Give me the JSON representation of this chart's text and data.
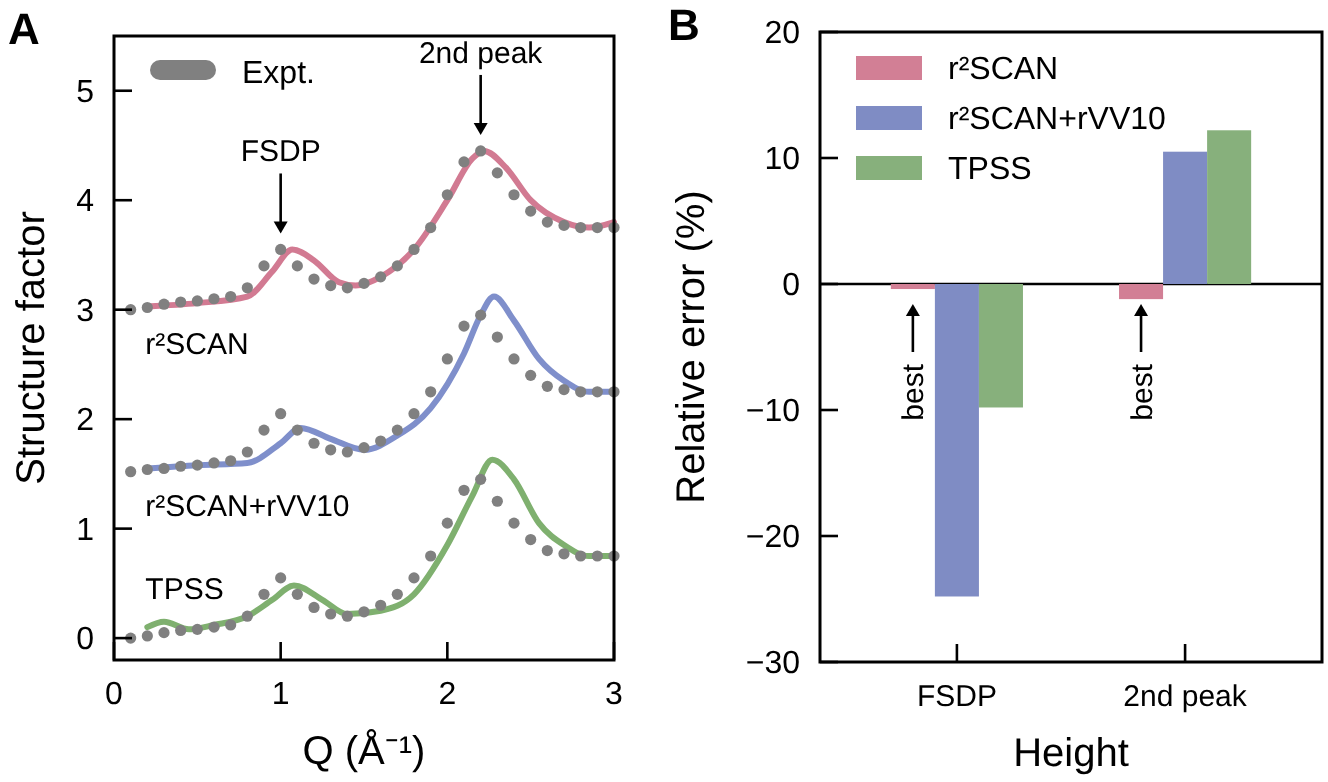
{
  "chart_data": [
    {
      "type": "line",
      "title": "A",
      "xlabel": "Q (Å⁻¹)",
      "ylabel": "Structure factor",
      "xlim": [
        0,
        3
      ],
      "xticks": [
        0,
        1,
        2,
        3
      ],
      "ylim": [
        -0.2,
        5.5
      ],
      "yticks": [
        0,
        1,
        2,
        3,
        4,
        5
      ],
      "grid": false,
      "legend": "top left",
      "annotations": [
        {
          "text": "FSDP",
          "x": 1.0,
          "y": 3.55
        },
        {
          "text": "2nd peak",
          "x": 2.2,
          "y": 4.45
        }
      ],
      "series": [
        {
          "type": "scatter",
          "name": "Expt.",
          "color": "#808080",
          "x": [
            0.1,
            0.2,
            0.3,
            0.4,
            0.5,
            0.6,
            0.7,
            0.8,
            0.9,
            1.0,
            1.1,
            1.2,
            1.3,
            1.4,
            1.5,
            1.6,
            1.7,
            1.8,
            1.9,
            2.0,
            2.1,
            2.2,
            2.3,
            2.4,
            2.5,
            2.6,
            2.7,
            2.8,
            2.9,
            3.0
          ],
          "values": [
            3.0,
            3.02,
            3.05,
            3.07,
            3.08,
            3.1,
            3.12,
            3.2,
            3.4,
            3.55,
            3.4,
            3.28,
            3.22,
            3.2,
            3.24,
            3.3,
            3.4,
            3.55,
            3.75,
            4.05,
            4.35,
            4.45,
            4.25,
            4.05,
            3.9,
            3.8,
            3.77,
            3.75,
            3.75,
            3.75
          ]
        },
        {
          "type": "scatter",
          "color": "#808080",
          "x": [
            0.1,
            0.2,
            0.3,
            0.4,
            0.5,
            0.6,
            0.7,
            0.8,
            0.9,
            1.0,
            1.1,
            1.2,
            1.3,
            1.4,
            1.5,
            1.6,
            1.7,
            1.8,
            1.9,
            2.0,
            2.1,
            2.2,
            2.3,
            2.4,
            2.5,
            2.6,
            2.7,
            2.8,
            2.9,
            3.0
          ],
          "values": [
            1.52,
            1.54,
            1.55,
            1.57,
            1.58,
            1.6,
            1.62,
            1.7,
            1.9,
            2.05,
            1.9,
            1.78,
            1.72,
            1.7,
            1.74,
            1.8,
            1.9,
            2.05,
            2.25,
            2.55,
            2.85,
            2.95,
            2.75,
            2.55,
            2.4,
            2.3,
            2.27,
            2.25,
            2.25,
            2.25
          ]
        },
        {
          "type": "scatter",
          "color": "#808080",
          "x": [
            0.1,
            0.2,
            0.3,
            0.4,
            0.5,
            0.6,
            0.7,
            0.8,
            0.9,
            1.0,
            1.1,
            1.2,
            1.3,
            1.4,
            1.5,
            1.6,
            1.7,
            1.8,
            1.9,
            2.0,
            2.1,
            2.2,
            2.3,
            2.4,
            2.5,
            2.6,
            2.7,
            2.8,
            2.9,
            3.0
          ],
          "values": [
            0.0,
            0.02,
            0.05,
            0.07,
            0.08,
            0.1,
            0.12,
            0.2,
            0.4,
            0.55,
            0.4,
            0.28,
            0.22,
            0.2,
            0.24,
            0.3,
            0.4,
            0.55,
            0.75,
            1.05,
            1.35,
            1.45,
            1.25,
            1.05,
            0.9,
            0.8,
            0.77,
            0.75,
            0.75,
            0.75
          ]
        },
        {
          "name": "r²SCAN",
          "color": "#d27a92",
          "x": [
            0.2,
            0.5,
            0.8,
            0.95,
            1.07,
            1.2,
            1.35,
            1.45,
            1.6,
            1.8,
            2.0,
            2.15,
            2.22,
            2.35,
            2.5,
            2.7,
            2.85,
            3.0
          ],
          "values": [
            3.03,
            3.06,
            3.12,
            3.35,
            3.55,
            3.45,
            3.25,
            3.22,
            3.3,
            3.55,
            4.0,
            4.38,
            4.45,
            4.3,
            4.0,
            3.8,
            3.75,
            3.8
          ]
        },
        {
          "name": "r²SCAN+rVV10",
          "color": "#7f8fcb",
          "x": [
            0.2,
            0.5,
            0.8,
            1.0,
            1.12,
            1.3,
            1.5,
            1.7,
            1.9,
            2.1,
            2.2,
            2.28,
            2.4,
            2.55,
            2.7,
            2.85,
            3.0
          ],
          "values": [
            1.55,
            1.58,
            1.6,
            1.78,
            1.92,
            1.82,
            1.72,
            1.85,
            2.1,
            2.6,
            2.95,
            3.12,
            2.9,
            2.55,
            2.35,
            2.25,
            2.25
          ]
        },
        {
          "name": "TPSS",
          "color": "#7fb06f",
          "x": [
            0.2,
            0.3,
            0.45,
            0.6,
            0.8,
            0.95,
            1.08,
            1.25,
            1.4,
            1.6,
            1.8,
            2.0,
            2.15,
            2.27,
            2.4,
            2.55,
            2.7,
            2.85,
            3.0
          ],
          "values": [
            0.1,
            0.15,
            0.08,
            0.12,
            0.2,
            0.35,
            0.48,
            0.35,
            0.22,
            0.25,
            0.4,
            0.85,
            1.3,
            1.63,
            1.45,
            1.05,
            0.85,
            0.75,
            0.75
          ]
        }
      ]
    },
    {
      "type": "bar",
      "title": "B",
      "xlabel": "Height",
      "ylabel": "Relative error (%)",
      "categories": [
        "FSDP",
        "2nd peak"
      ],
      "ylim": [
        -30,
        20
      ],
      "yticks": [
        -30,
        -20,
        -10,
        0,
        10,
        20
      ],
      "grid": false,
      "legend": "top left",
      "ref_lines": [
        {
          "axis": "y",
          "value": 0
        }
      ],
      "annotations": [
        "best",
        "best"
      ],
      "series": [
        {
          "name": "r²SCAN",
          "color": "#d27f95",
          "values": [
            -0.4,
            -1.2
          ]
        },
        {
          "name": "r²SCAN+rVV10",
          "color": "#7f8cc4",
          "values": [
            -24.8,
            10.5
          ]
        },
        {
          "name": "TPSS",
          "color": "#87b07c",
          "values": [
            -9.8,
            12.2
          ]
        }
      ]
    }
  ]
}
